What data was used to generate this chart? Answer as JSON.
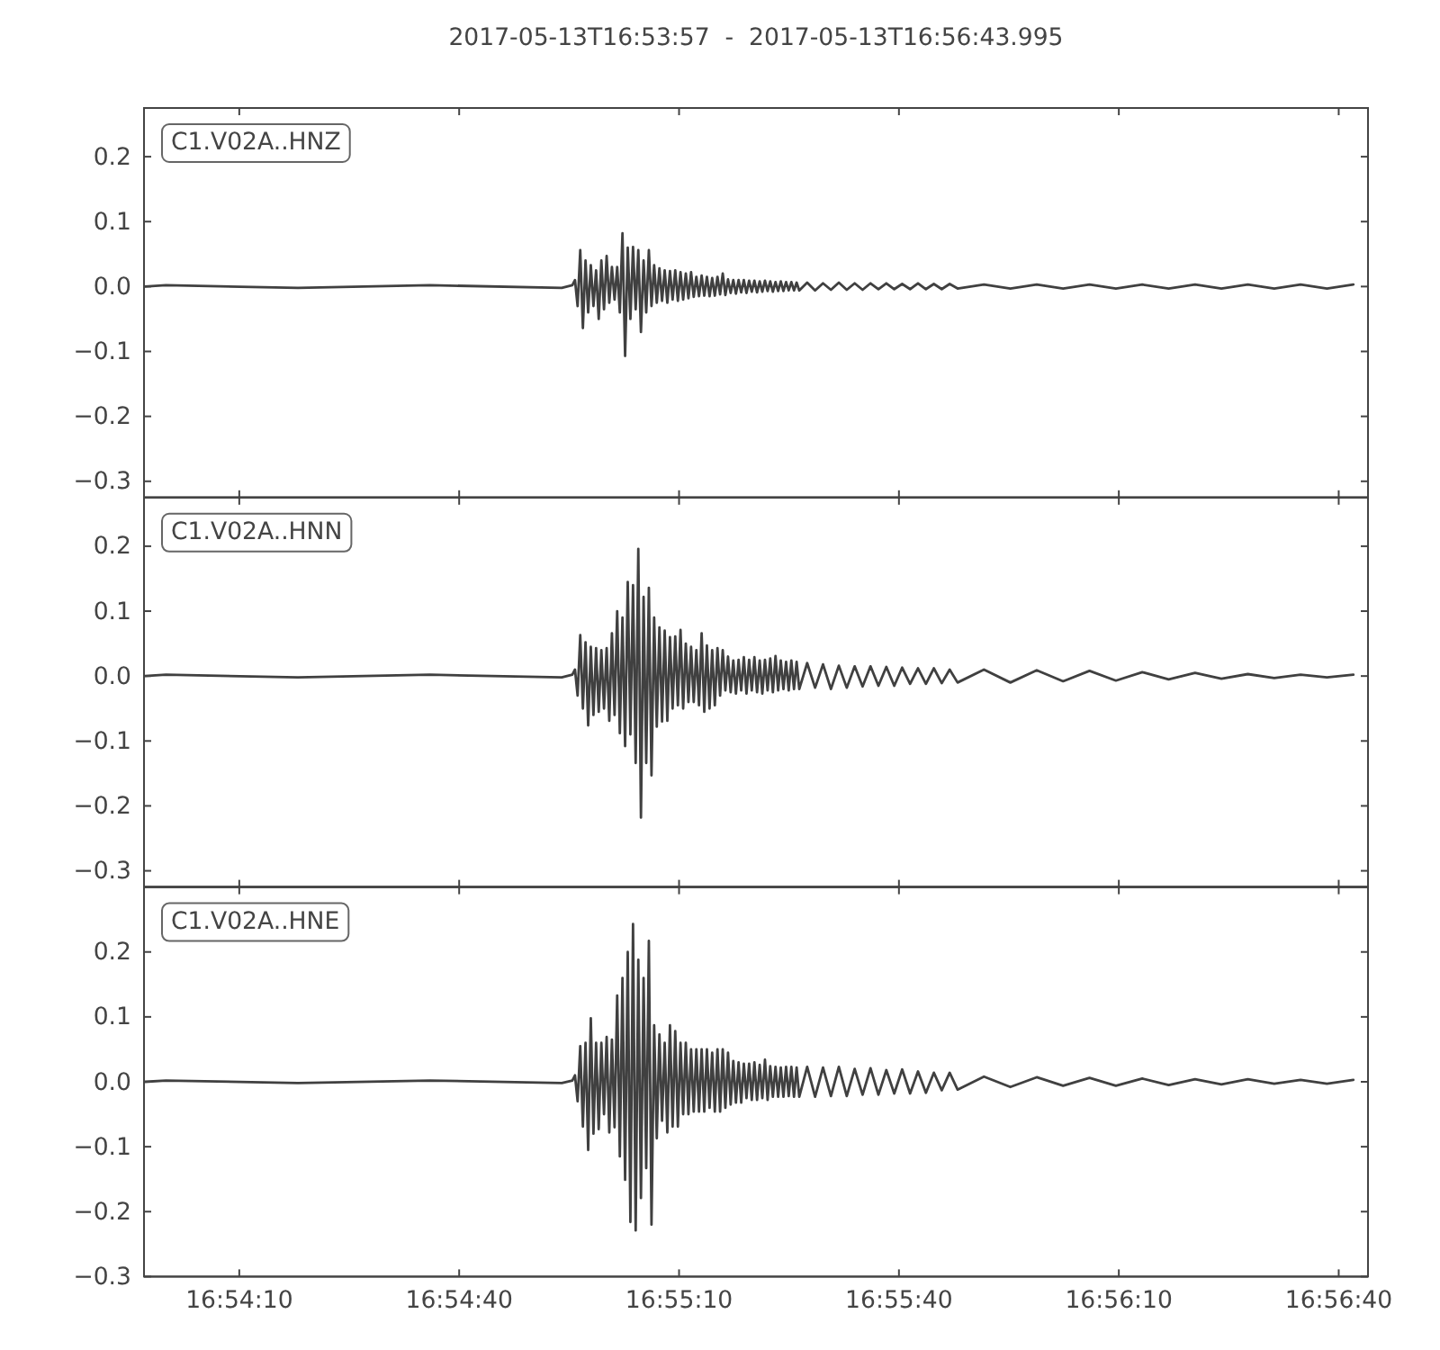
{
  "chart_data": [
    {
      "type": "line",
      "title": "2017-05-13T16:53:57  -  2017-05-13T16:56:43.995",
      "annotations": [
        "C1.V02A..HNZ"
      ],
      "color": "#404040",
      "xlim": [
        16.8991667,
        16.9455542
      ],
      "xticks": [
        {
          "value": 16.9027778,
          "label": null
        },
        {
          "value": 16.9111111,
          "label": null
        },
        {
          "value": 16.9194444,
          "label": null
        },
        {
          "value": 16.9277778,
          "label": null
        },
        {
          "value": 16.9361111,
          "label": null
        },
        {
          "value": 16.9444444,
          "label": null
        }
      ],
      "ylim": [
        -0.325,
        0.275
      ],
      "yticks": [
        {
          "value": -0.3,
          "label": "−0.3"
        },
        {
          "value": -0.2,
          "label": "−0.2"
        },
        {
          "value": -0.1,
          "label": "−0.1"
        },
        {
          "value": 0,
          "label": "0.0"
        },
        {
          "value": 0.1,
          "label": "0.1"
        },
        {
          "value": 0.2,
          "label": "0.2"
        }
      ],
      "tick_labels": "y",
      "x": [
        16.8992,
        16.9,
        16.905,
        16.91,
        16.915,
        16.9154,
        16.9155,
        16.9156,
        16.9157,
        16.9158,
        16.9159,
        16.916,
        16.9161,
        16.9162,
        16.9163,
        16.9164,
        16.9165,
        16.9166,
        16.9167,
        16.9168,
        16.9169,
        16.917,
        16.9171,
        16.9172,
        16.9173,
        16.9174,
        16.9175,
        16.9176,
        16.9177,
        16.9178,
        16.9179,
        16.918,
        16.9181,
        16.9182,
        16.9183,
        16.9184,
        16.9185,
        16.9186,
        16.9187,
        16.9188,
        16.9189,
        16.919,
        16.9191,
        16.9192,
        16.9193,
        16.9194,
        16.9195,
        16.9196,
        16.9197,
        16.9198,
        16.9199,
        16.92,
        16.9201,
        16.9202,
        16.9203,
        16.9204,
        16.9205,
        16.9206,
        16.9207,
        16.9208,
        16.9209,
        16.921,
        16.9211,
        16.9212,
        16.9213,
        16.9214,
        16.9215,
        16.9216,
        16.9217,
        16.9218,
        16.9219,
        16.922,
        16.9221,
        16.9222,
        16.9223,
        16.9224,
        16.9225,
        16.9226,
        16.9227,
        16.9228,
        16.9229,
        16.923,
        16.9231,
        16.9232,
        16.9233,
        16.9234,
        16.9235,
        16.9236,
        16.9237,
        16.9238,
        16.9239,
        16.924,
        16.9243,
        16.9246,
        16.9249,
        16.9252,
        16.9255,
        16.9258,
        16.9261,
        16.9264,
        16.9267,
        16.927,
        16.9273,
        16.9276,
        16.9279,
        16.9282,
        16.9285,
        16.9288,
        16.9291,
        16.9294,
        16.9297,
        16.93,
        16.931,
        16.932,
        16.933,
        16.934,
        16.935,
        16.936,
        16.937,
        16.938,
        16.939,
        16.94,
        16.941,
        16.942,
        16.943,
        16.944,
        16.945
      ],
      "values": [
        0,
        0.002,
        -0.002,
        0.002,
        -0.002,
        0.002,
        0.01,
        -0.03,
        0.056,
        -0.064,
        0.04,
        -0.04,
        0.033,
        -0.03,
        0.025,
        -0.05,
        0.04,
        -0.035,
        0.047,
        -0.025,
        0.03,
        -0.02,
        0.03,
        -0.04,
        0.082,
        -0.107,
        0.06,
        -0.05,
        0.061,
        -0.035,
        0.056,
        -0.07,
        0.04,
        -0.04,
        0.056,
        -0.03,
        0.033,
        -0.025,
        0.028,
        -0.022,
        0.025,
        -0.025,
        0.024,
        -0.02,
        0.025,
        -0.022,
        0.022,
        -0.02,
        0.02,
        -0.018,
        0.022,
        -0.016,
        0.015,
        -0.015,
        0.017,
        -0.014,
        0.015,
        -0.015,
        0.013,
        -0.014,
        0.015,
        -0.012,
        0.02,
        -0.013,
        0.011,
        -0.01,
        0.01,
        -0.011,
        0.01,
        -0.009,
        0.01,
        -0.01,
        0.009,
        -0.008,
        0.009,
        -0.009,
        0.008,
        -0.008,
        0.009,
        -0.007,
        0.008,
        -0.008,
        0.007,
        -0.007,
        0.008,
        -0.007,
        0.007,
        -0.006,
        0.007,
        -0.006,
        0.006,
        -0.006,
        0.006,
        -0.006,
        0.005,
        -0.005,
        0.006,
        -0.005,
        0.005,
        -0.005,
        0.005,
        -0.004,
        0.005,
        -0.004,
        0.004,
        -0.004,
        0.005,
        -0.004,
        0.004,
        -0.004,
        0.004,
        -0.003,
        0.003,
        -0.003,
        0.003,
        -0.003,
        0.003,
        -0.003,
        0.003,
        -0.003,
        0.003,
        -0.003,
        0.003,
        -0.003,
        0.003,
        -0.003,
        0.003
      ]
    },
    {
      "type": "line",
      "annotations": [
        "C1.V02A..HNN"
      ],
      "color": "#404040",
      "xlim": [
        16.8991667,
        16.9455542
      ],
      "xticks": [
        {
          "value": 16.9027778,
          "label": null
        },
        {
          "value": 16.9111111,
          "label": null
        },
        {
          "value": 16.9194444,
          "label": null
        },
        {
          "value": 16.9277778,
          "label": null
        },
        {
          "value": 16.9361111,
          "label": null
        },
        {
          "value": 16.9444444,
          "label": null
        }
      ],
      "ylim": [
        -0.325,
        0.275
      ],
      "yticks": [
        {
          "value": -0.3,
          "label": "−0.3"
        },
        {
          "value": -0.2,
          "label": "−0.2"
        },
        {
          "value": -0.1,
          "label": "−0.1"
        },
        {
          "value": 0,
          "label": "0.0"
        },
        {
          "value": 0.1,
          "label": "0.1"
        },
        {
          "value": 0.2,
          "label": "0.2"
        }
      ],
      "tick_labels": "y",
      "x": [
        16.8992,
        16.9,
        16.905,
        16.91,
        16.915,
        16.9154,
        16.9155,
        16.9156,
        16.9157,
        16.9158,
        16.9159,
        16.916,
        16.9161,
        16.9162,
        16.9163,
        16.9164,
        16.9165,
        16.9166,
        16.9167,
        16.9168,
        16.9169,
        16.917,
        16.9171,
        16.9172,
        16.9173,
        16.9174,
        16.9175,
        16.9176,
        16.9177,
        16.9178,
        16.9179,
        16.918,
        16.9181,
        16.9182,
        16.9183,
        16.9184,
        16.9185,
        16.9186,
        16.9187,
        16.9188,
        16.9189,
        16.919,
        16.9191,
        16.9192,
        16.9193,
        16.9194,
        16.9195,
        16.9196,
        16.9197,
        16.9198,
        16.9199,
        16.92,
        16.9201,
        16.9202,
        16.9203,
        16.9204,
        16.9205,
        16.9206,
        16.9207,
        16.9208,
        16.9209,
        16.921,
        16.9211,
        16.9212,
        16.9213,
        16.9214,
        16.9215,
        16.9216,
        16.9217,
        16.9218,
        16.9219,
        16.922,
        16.9221,
        16.9222,
        16.9223,
        16.9224,
        16.9225,
        16.9226,
        16.9227,
        16.9228,
        16.9229,
        16.923,
        16.9231,
        16.9232,
        16.9233,
        16.9234,
        16.9235,
        16.9236,
        16.9237,
        16.9238,
        16.9239,
        16.924,
        16.9243,
        16.9246,
        16.9249,
        16.9252,
        16.9255,
        16.9258,
        16.9261,
        16.9264,
        16.9267,
        16.927,
        16.9273,
        16.9276,
        16.9279,
        16.9282,
        16.9285,
        16.9288,
        16.9291,
        16.9294,
        16.9297,
        16.93,
        16.931,
        16.932,
        16.933,
        16.934,
        16.935,
        16.936,
        16.937,
        16.938,
        16.939,
        16.94,
        16.941,
        16.942,
        16.943,
        16.944,
        16.945
      ],
      "values": [
        0,
        0.002,
        -0.002,
        0.002,
        -0.002,
        0.002,
        0.01,
        -0.03,
        0.063,
        -0.05,
        0.052,
        -0.076,
        0.045,
        -0.06,
        0.043,
        -0.055,
        0.04,
        -0.05,
        0.043,
        -0.069,
        0.066,
        -0.06,
        0.1,
        -0.088,
        0.09,
        -0.108,
        0.145,
        -0.09,
        0.14,
        -0.134,
        0.196,
        -0.218,
        0.122,
        -0.134,
        0.136,
        -0.153,
        0.09,
        -0.078,
        0.075,
        -0.07,
        0.07,
        -0.069,
        0.06,
        -0.05,
        0.061,
        -0.045,
        0.071,
        -0.05,
        0.05,
        -0.04,
        0.045,
        -0.04,
        0.04,
        -0.045,
        0.066,
        -0.055,
        0.047,
        -0.05,
        0.04,
        -0.045,
        0.043,
        -0.03,
        0.04,
        -0.022,
        0.03,
        -0.025,
        0.024,
        -0.027,
        0.025,
        -0.022,
        0.029,
        -0.027,
        0.025,
        -0.022,
        0.029,
        -0.025,
        0.024,
        -0.027,
        0.025,
        -0.022,
        0.027,
        -0.025,
        0.031,
        -0.022,
        0.024,
        -0.02,
        0.022,
        -0.022,
        0.024,
        -0.02,
        0.022,
        -0.02,
        0.02,
        -0.018,
        0.018,
        -0.02,
        0.016,
        -0.018,
        0.015,
        -0.016,
        0.015,
        -0.015,
        0.014,
        -0.015,
        0.013,
        -0.012,
        0.012,
        -0.012,
        0.012,
        -0.011,
        0.01,
        -0.01,
        0.01,
        -0.01,
        0.009,
        -0.008,
        0.008,
        -0.007,
        0.006,
        -0.005,
        0.005,
        -0.004,
        0.003,
        -0.003,
        0.002,
        -0.002,
        0.002
      ]
    },
    {
      "type": "line",
      "annotations": [
        "C1.V02A..HNE"
      ],
      "color": "#404040",
      "xlim": [
        16.8991667,
        16.9455542
      ],
      "xticks": [
        {
          "value": 16.9027778,
          "label": "16:54:10"
        },
        {
          "value": 16.9111111,
          "label": "16:54:40"
        },
        {
          "value": 16.9194444,
          "label": "16:55:10"
        },
        {
          "value": 16.9277778,
          "label": "16:55:40"
        },
        {
          "value": 16.9361111,
          "label": "16:56:10"
        },
        {
          "value": 16.9444444,
          "label": "16:56:40"
        }
      ],
      "ylim": [
        -0.3,
        0.3
      ],
      "yticks": [
        {
          "value": -0.3,
          "label": "−0.3"
        },
        {
          "value": -0.2,
          "label": "−0.2"
        },
        {
          "value": -0.1,
          "label": "−0.1"
        },
        {
          "value": 0,
          "label": "0.0"
        },
        {
          "value": 0.1,
          "label": "0.1"
        },
        {
          "value": 0.2,
          "label": "0.2"
        }
      ],
      "x": [
        16.8992,
        16.9,
        16.905,
        16.91,
        16.915,
        16.9154,
        16.9155,
        16.9156,
        16.9157,
        16.9158,
        16.9159,
        16.916,
        16.9161,
        16.9162,
        16.9163,
        16.9164,
        16.9165,
        16.9166,
        16.9167,
        16.9168,
        16.9169,
        16.917,
        16.9171,
        16.9172,
        16.9173,
        16.9174,
        16.9175,
        16.9176,
        16.9177,
        16.9178,
        16.9179,
        16.918,
        16.9181,
        16.9182,
        16.9183,
        16.9184,
        16.9185,
        16.9186,
        16.9187,
        16.9188,
        16.9189,
        16.919,
        16.9191,
        16.9192,
        16.9193,
        16.9194,
        16.9195,
        16.9196,
        16.9197,
        16.9198,
        16.9199,
        16.92,
        16.9201,
        16.9202,
        16.9203,
        16.9204,
        16.9205,
        16.9206,
        16.9207,
        16.9208,
        16.9209,
        16.921,
        16.9211,
        16.9212,
        16.9213,
        16.9214,
        16.9215,
        16.9216,
        16.9217,
        16.9218,
        16.9219,
        16.922,
        16.9221,
        16.9222,
        16.9223,
        16.9224,
        16.9225,
        16.9226,
        16.9227,
        16.9228,
        16.9229,
        16.923,
        16.9231,
        16.9232,
        16.9233,
        16.9234,
        16.9235,
        16.9236,
        16.9237,
        16.9238,
        16.9239,
        16.924,
        16.9243,
        16.9246,
        16.9249,
        16.9252,
        16.9255,
        16.9258,
        16.9261,
        16.9264,
        16.9267,
        16.927,
        16.9273,
        16.9276,
        16.9279,
        16.9282,
        16.9285,
        16.9288,
        16.9291,
        16.9294,
        16.9297,
        16.93,
        16.931,
        16.932,
        16.933,
        16.934,
        16.935,
        16.936,
        16.937,
        16.938,
        16.939,
        16.94,
        16.941,
        16.942,
        16.943,
        16.944,
        16.945
      ],
      "values": [
        0,
        0.002,
        -0.002,
        0.002,
        -0.002,
        0.002,
        0.01,
        -0.03,
        0.055,
        -0.069,
        0.06,
        -0.105,
        0.098,
        -0.08,
        0.06,
        -0.073,
        0.06,
        -0.05,
        0.069,
        -0.078,
        0.065,
        -0.07,
        0.133,
        -0.115,
        0.16,
        -0.151,
        0.2,
        -0.216,
        0.243,
        -0.229,
        0.188,
        -0.179,
        0.16,
        -0.133,
        0.217,
        -0.22,
        0.087,
        -0.087,
        0.073,
        -0.06,
        0.06,
        -0.078,
        0.087,
        -0.069,
        0.078,
        -0.069,
        0.06,
        -0.05,
        0.06,
        -0.05,
        0.05,
        -0.046,
        0.05,
        -0.046,
        0.05,
        -0.046,
        0.05,
        -0.04,
        0.045,
        -0.046,
        0.05,
        -0.046,
        0.05,
        -0.04,
        0.045,
        -0.035,
        0.032,
        -0.032,
        0.03,
        -0.032,
        0.028,
        -0.025,
        0.028,
        -0.028,
        0.03,
        -0.028,
        0.026,
        -0.025,
        0.034,
        -0.028,
        0.024,
        -0.023,
        0.023,
        -0.023,
        0.022,
        -0.023,
        0.023,
        -0.022,
        0.023,
        -0.023,
        0.022,
        -0.023,
        0.023,
        -0.023,
        0.022,
        -0.022,
        0.023,
        -0.022,
        0.02,
        -0.02,
        0.021,
        -0.02,
        0.018,
        -0.018,
        0.019,
        -0.018,
        0.016,
        -0.017,
        0.014,
        -0.013,
        0.014,
        -0.012,
        0.008,
        -0.008,
        0.007,
        -0.006,
        0.006,
        -0.006,
        0.005,
        -0.005,
        0.004,
        -0.004,
        0.004,
        -0.003,
        0.003,
        -0.003,
        0.003
      ]
    }
  ]
}
